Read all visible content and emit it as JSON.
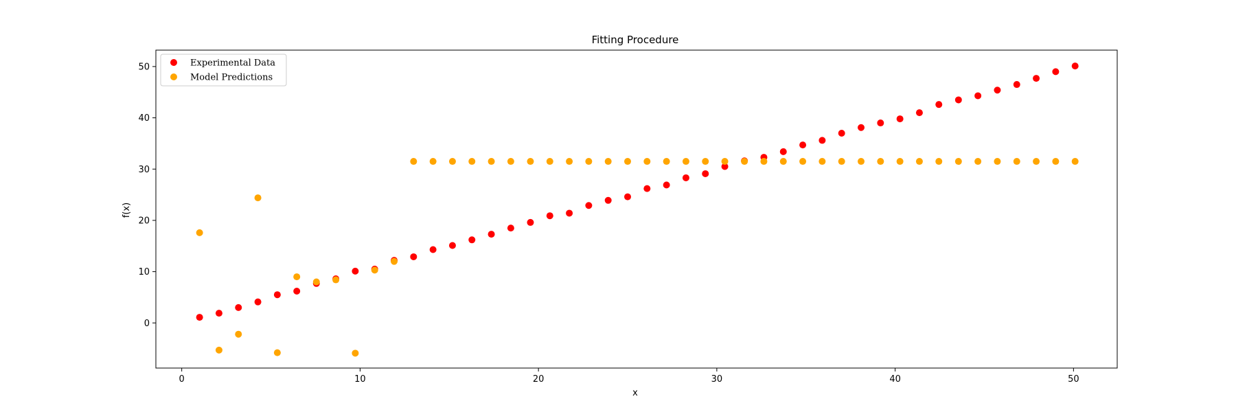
{
  "chart_data": {
    "type": "scatter",
    "title": "Fitting Procedure",
    "xlabel": "x",
    "ylabel": "f(x)",
    "xlim": [
      -1.45,
      52.45
    ],
    "ylim": [
      -8.8,
      53.2
    ],
    "xticks": [
      0,
      10,
      20,
      30,
      40,
      50
    ],
    "yticks": [
      0,
      10,
      20,
      30,
      40,
      50
    ],
    "grid": false,
    "legend": {
      "placement": "top-left"
    },
    "series": [
      {
        "name": "Experimental Data",
        "color": "#ff0000",
        "x": [
          1.0,
          2.09,
          3.18,
          4.27,
          5.36,
          6.45,
          7.55,
          8.64,
          9.73,
          10.82,
          11.91,
          13.0,
          14.09,
          15.18,
          16.27,
          17.36,
          18.45,
          19.55,
          20.64,
          21.73,
          22.82,
          23.91,
          25.0,
          26.09,
          27.18,
          28.27,
          29.36,
          30.45,
          31.55,
          32.64,
          33.73,
          34.82,
          35.91,
          37.0,
          38.09,
          39.18,
          40.27,
          41.36,
          42.45,
          43.55,
          44.64,
          45.73,
          46.82,
          47.91,
          49.0,
          50.09
        ],
        "y": [
          1.1,
          1.9,
          3.0,
          4.1,
          5.5,
          6.2,
          7.7,
          8.6,
          10.1,
          10.5,
          12.2,
          12.9,
          14.3,
          15.1,
          16.2,
          17.3,
          18.5,
          19.6,
          20.9,
          21.4,
          22.9,
          23.9,
          24.6,
          26.2,
          26.9,
          28.3,
          29.1,
          30.5,
          31.6,
          32.3,
          33.4,
          34.7,
          35.6,
          37.0,
          38.1,
          39.0,
          39.8,
          41.0,
          42.6,
          43.5,
          44.3,
          45.4,
          46.5,
          47.7,
          49.0,
          50.1
        ]
      },
      {
        "name": "Model Predictions",
        "color": "#ffa500",
        "x": [
          1.0,
          2.09,
          3.18,
          4.27,
          5.36,
          6.45,
          7.55,
          8.64,
          9.73,
          10.82,
          11.91,
          13.0,
          14.09,
          15.18,
          16.27,
          17.36,
          18.45,
          19.55,
          20.64,
          21.73,
          22.82,
          23.91,
          25.0,
          26.09,
          27.18,
          28.27,
          29.36,
          30.45,
          31.55,
          32.64,
          33.73,
          34.82,
          35.91,
          37.0,
          38.09,
          39.18,
          40.27,
          41.36,
          42.45,
          43.55,
          44.64,
          45.73,
          46.82,
          47.91,
          49.0,
          50.09
        ],
        "y": [
          17.6,
          -5.3,
          -2.2,
          24.4,
          -5.8,
          9.0,
          8.0,
          8.4,
          -5.9,
          10.3,
          12.0,
          31.5,
          31.5,
          31.5,
          31.5,
          31.5,
          31.5,
          31.5,
          31.5,
          31.5,
          31.5,
          31.5,
          31.5,
          31.5,
          31.5,
          31.5,
          31.5,
          31.5,
          31.5,
          31.5,
          31.5,
          31.5,
          31.5,
          31.5,
          31.5,
          31.5,
          31.5,
          31.5,
          31.5,
          31.5,
          31.5,
          31.5,
          31.5,
          31.5,
          31.5,
          31.5
        ]
      }
    ]
  }
}
